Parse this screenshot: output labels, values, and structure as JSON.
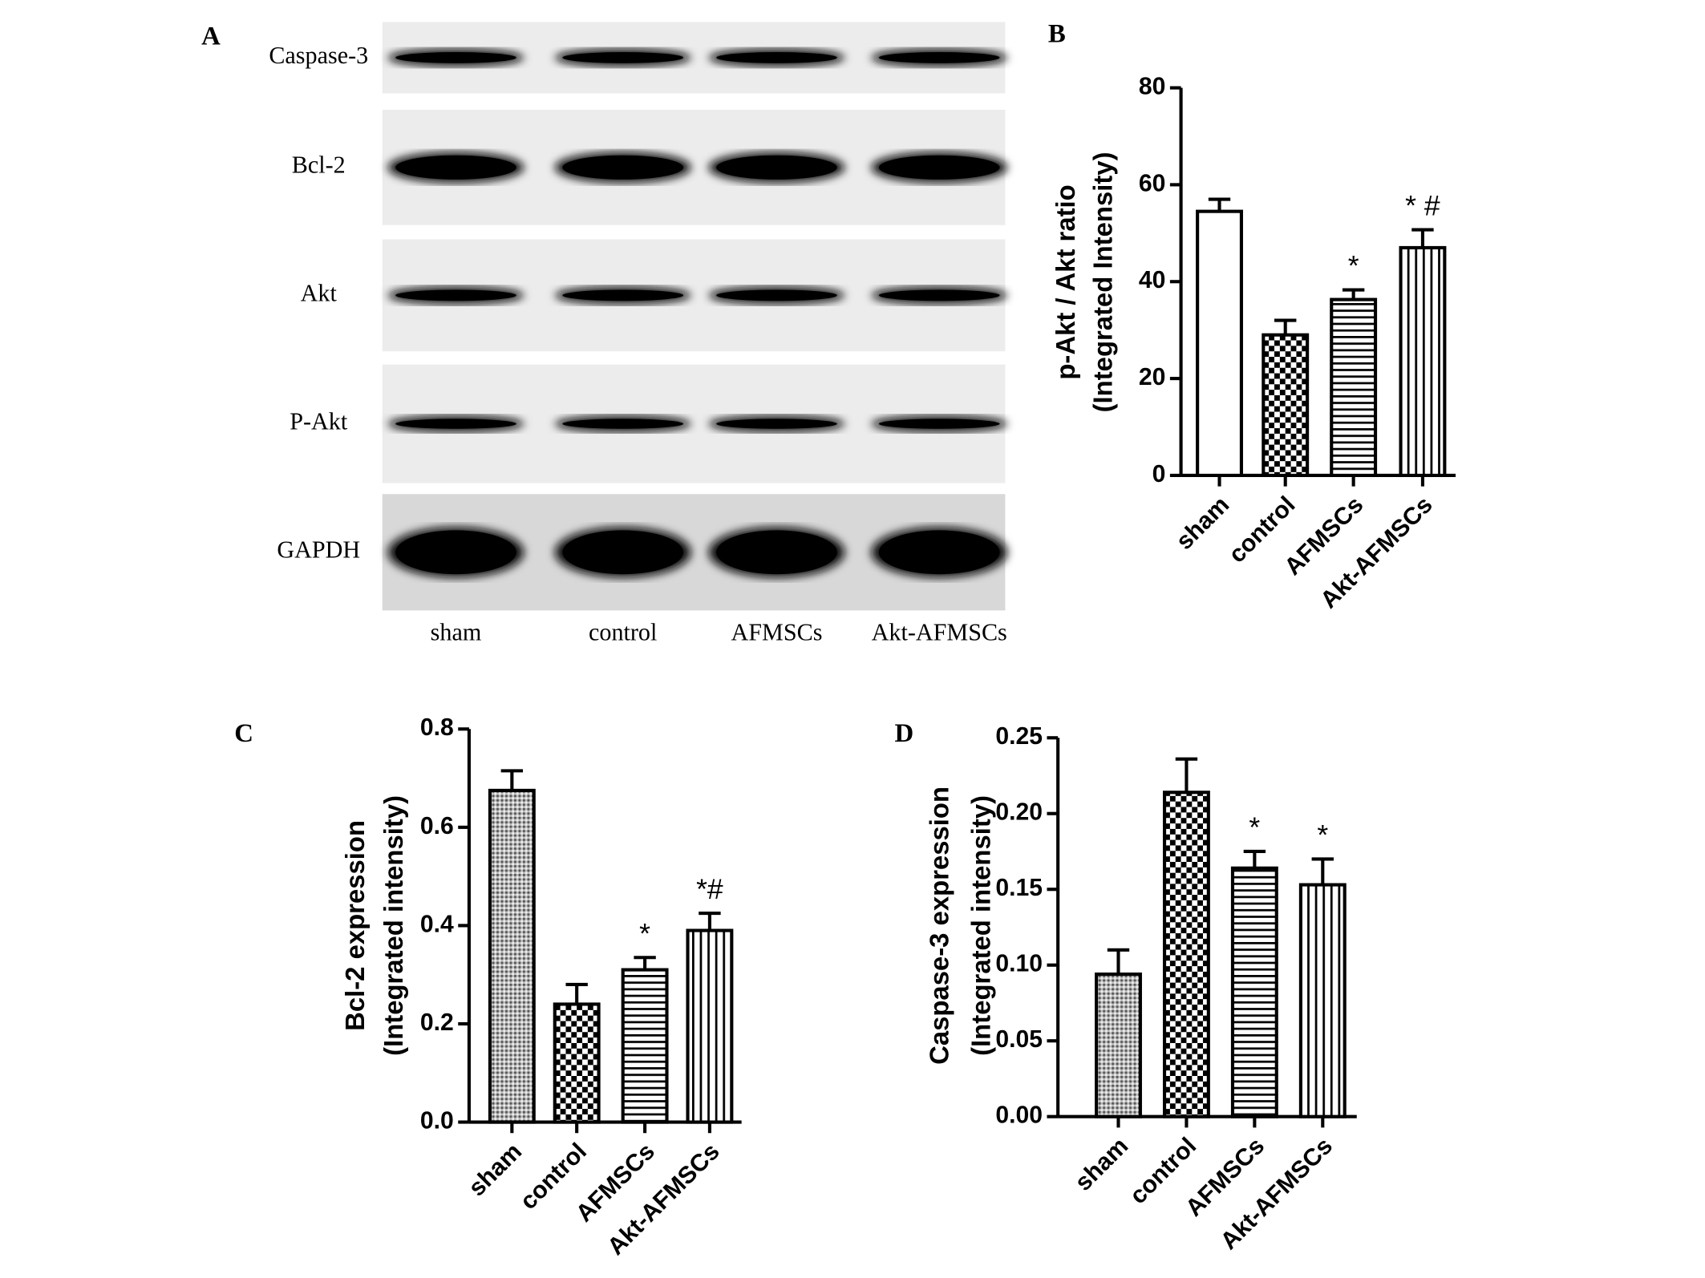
{
  "blot": {
    "panel": "A",
    "rows": [
      "Caspase-3",
      "Bcl-2",
      "Akt",
      "P-Akt",
      "GAPDH"
    ],
    "lanes": [
      "sham",
      "control",
      "AFMSCs",
      "Akt-AFMSCs"
    ]
  },
  "chart_data": [
    {
      "type": "bar",
      "panel": "B",
      "y_label": [
        "p-Akt / Akt ratio",
        "(Integrated Intensity)"
      ],
      "categories": [
        "sham",
        "control",
        "AFMSCs",
        "Akt-AFMSCs"
      ],
      "values": [
        54.5,
        29,
        36.3,
        47
      ],
      "errors": [
        2.5,
        3,
        2,
        3.7
      ],
      "annotations": [
        null,
        null,
        "*",
        "* #"
      ],
      "patterns": [
        "open",
        "checker",
        "hlines",
        "vlines"
      ],
      "ylim": [
        0,
        80
      ],
      "yticks": [
        0,
        20,
        40,
        60,
        80
      ]
    },
    {
      "type": "bar",
      "panel": "C",
      "y_label": [
        "Bcl-2 expression",
        "(Integrated intensity)"
      ],
      "categories": [
        "sham",
        "control",
        "AFMSCs",
        "Akt-AFMSCs"
      ],
      "values": [
        0.675,
        0.24,
        0.31,
        0.39
      ],
      "errors": [
        0.04,
        0.04,
        0.025,
        0.035
      ],
      "annotations": [
        null,
        null,
        "*",
        "*#"
      ],
      "patterns": [
        "dots",
        "checker",
        "hlines",
        "vlines"
      ],
      "ylim": [
        0,
        0.8
      ],
      "yticks": [
        {
          "value": 0,
          "label": "0.0"
        },
        0.2,
        0.4,
        0.6,
        0.8
      ]
    },
    {
      "type": "bar",
      "panel": "D",
      "y_label": [
        "Caspase-3 expression",
        "(Integrated intensity)"
      ],
      "categories": [
        "sham",
        "control",
        "AFMSCs",
        "Akt-AFMSCs"
      ],
      "values": [
        0.094,
        0.214,
        0.164,
        0.153
      ],
      "errors": [
        0.016,
        0.022,
        0.011,
        0.017
      ],
      "annotations": [
        null,
        null,
        "*",
        "*"
      ],
      "patterns": [
        "dots",
        "checker",
        "hlines",
        "vlines"
      ],
      "ylim": [
        0,
        0.25
      ],
      "yticks": [
        {
          "value": 0,
          "label": "0.00"
        },
        {
          "value": 0.05,
          "label": "0.05"
        },
        {
          "value": 0.1,
          "label": "0.10"
        },
        {
          "value": 0.15,
          "label": "0.15"
        },
        {
          "value": 0.2,
          "label": "0.20"
        },
        {
          "value": 0.25,
          "label": "0.25"
        }
      ]
    }
  ]
}
